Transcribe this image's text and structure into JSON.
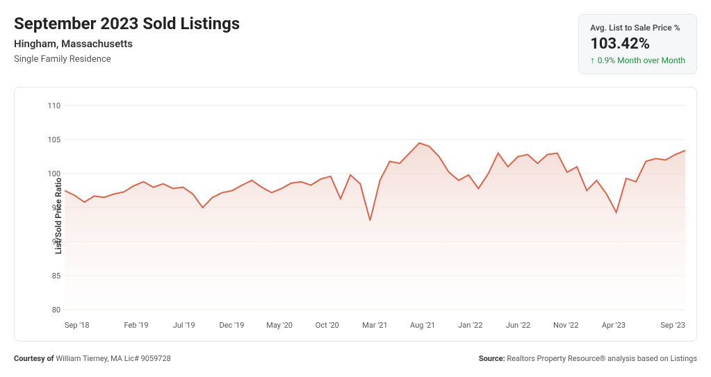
{
  "header": {
    "title": "September 2023 Sold Listings",
    "location": "Hingham, Massachusetts",
    "property_type": "Single Family Residence"
  },
  "stat_card": {
    "label": "Avg. List to Sale Price %",
    "value": "103.42%",
    "change": "0.9% Month over Month",
    "change_color": "#1e8e3e"
  },
  "chart": {
    "type": "area",
    "ylabel": "List/Sold Price Ratio",
    "ylim": [
      80,
      110
    ],
    "ytick_step": 5,
    "yticks": [
      80,
      85,
      90,
      95,
      100,
      105,
      110
    ],
    "xticks": [
      "Sep '18",
      "Feb '19",
      "Jul '19",
      "Dec '19",
      "May '20",
      "Oct '20",
      "Mar '21",
      "Aug '21",
      "Jan '22",
      "Jun '22",
      "Nov '22",
      "Apr '23",
      "Sep '23"
    ],
    "line_color": "#d9644a",
    "fill_top_color": "#f3d8d1",
    "fill_bottom_color": "#fdfbfa",
    "grid_color": "#e8e8e8",
    "background_color": "#ffffff",
    "line_width": 2,
    "values": [
      97.5,
      96.8,
      95.8,
      96.7,
      96.5,
      97.0,
      97.3,
      98.2,
      98.8,
      98.0,
      98.5,
      97.8,
      98.0,
      97.0,
      95.0,
      96.5,
      97.2,
      97.5,
      98.3,
      99.0,
      98.0,
      97.2,
      97.8,
      98.6,
      98.8,
      98.3,
      99.2,
      99.6,
      96.3,
      99.8,
      98.5,
      93.1,
      99.0,
      101.8,
      101.5,
      103.0,
      104.5,
      104.0,
      102.5,
      100.2,
      99.0,
      99.8,
      97.8,
      100.0,
      103.0,
      101.0,
      102.5,
      102.8,
      101.5,
      102.8,
      103.0,
      100.2,
      101.0,
      97.5,
      99.0,
      97.0,
      94.3,
      99.3,
      98.8,
      101.8,
      102.2,
      102.0,
      102.8,
      103.4
    ]
  },
  "footer": {
    "courtesy_label": "Courtesy of",
    "courtesy_value": "William Tierney, MA Lic# 9059728",
    "source_label": "Source:",
    "source_value": "Realtors Property Resource® analysis based on Listings"
  }
}
